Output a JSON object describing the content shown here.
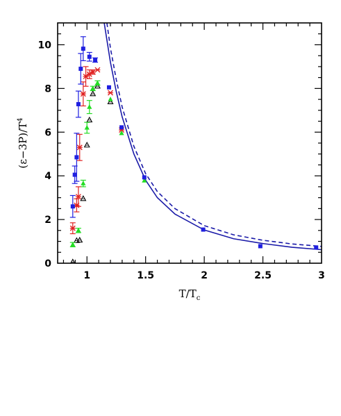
{
  "chart_data": {
    "type": "scatter",
    "title": "",
    "xlabel": "T/T",
    "xlabel_sub": "c",
    "ylabel": "(ε−3P)/T",
    "ylabel_sup": "4",
    "xlim": [
      0.75,
      3.0
    ],
    "ylim": [
      0,
      11
    ],
    "x_ticks": [
      {
        "value": 1,
        "label": "1"
      },
      {
        "value": 1.5,
        "label": "1.5"
      },
      {
        "value": 2,
        "label": "2"
      },
      {
        "value": 2.5,
        "label": "2.5"
      },
      {
        "value": 3,
        "label": "3"
      }
    ],
    "y_ticks": [
      {
        "value": 0,
        "label": "0"
      },
      {
        "value": 2,
        "label": "2"
      },
      {
        "value": 4,
        "label": "4"
      },
      {
        "value": 6,
        "label": "6"
      },
      {
        "value": 8,
        "label": "8"
      },
      {
        "value": 10,
        "label": "10"
      }
    ],
    "grid": false,
    "legend": "none",
    "series": [
      {
        "marker": "square",
        "color": "#1f1fe0",
        "points": [
          {
            "x": 0.879,
            "y": 2.6,
            "err": 0.5
          },
          {
            "x": 0.896,
            "y": 4.05,
            "err": 0.4
          },
          {
            "x": 0.912,
            "y": 4.85,
            "err": 1.1
          },
          {
            "x": 0.927,
            "y": 7.28,
            "err": 0.6
          },
          {
            "x": 0.947,
            "y": 8.9,
            "err": 0.7
          },
          {
            "x": 0.968,
            "y": 9.82,
            "err": 0.55
          },
          {
            "x": 1.021,
            "y": 9.45,
            "err": 0.2
          },
          {
            "x": 1.07,
            "y": 9.3,
            "err": 0.1
          },
          {
            "x": 1.188,
            "y": 8.05,
            "err": 0.05
          },
          {
            "x": 1.295,
            "y": 6.22,
            "err": 0.05
          },
          {
            "x": 1.489,
            "y": 3.93,
            "err": 0.05
          },
          {
            "x": 1.991,
            "y": 1.54,
            "err": 0.05
          },
          {
            "x": 2.478,
            "y": 0.78,
            "err": 0.03
          },
          {
            "x": 2.954,
            "y": 0.72,
            "err": 0.03
          }
        ]
      },
      {
        "marker": "star",
        "color": "#e02020",
        "points": [
          {
            "x": 0.879,
            "y": 1.6,
            "err": 0.25
          },
          {
            "x": 0.912,
            "y": 2.65,
            "err": 0.3
          },
          {
            "x": 0.927,
            "y": 3.05,
            "err": 0.45
          },
          {
            "x": 0.938,
            "y": 5.3,
            "err": 0.6
          },
          {
            "x": 0.968,
            "y": 7.75,
            "err": 0.55
          },
          {
            "x": 0.99,
            "y": 8.55,
            "err": 0.45
          },
          {
            "x": 1.021,
            "y": 8.65,
            "err": 0.2
          },
          {
            "x": 1.05,
            "y": 8.75,
            "err": 0.1
          },
          {
            "x": 1.09,
            "y": 8.85,
            "err": 0.05
          },
          {
            "x": 1.2,
            "y": 7.8,
            "err": 0.05
          },
          {
            "x": 1.295,
            "y": 6.1,
            "err": 0.05
          }
        ]
      },
      {
        "marker": "triangle",
        "color": "#22dd22",
        "points": [
          {
            "x": 0.879,
            "y": 0.85,
            "err": 0.1
          },
          {
            "x": 0.927,
            "y": 1.5,
            "err": 0.1
          },
          {
            "x": 0.968,
            "y": 3.65,
            "err": 0.15
          },
          {
            "x": 1.0,
            "y": 6.2,
            "err": 0.25
          },
          {
            "x": 1.021,
            "y": 7.15,
            "err": 0.3
          },
          {
            "x": 1.05,
            "y": 8.0,
            "err": 0.1
          },
          {
            "x": 1.09,
            "y": 8.25,
            "err": 0.1
          },
          {
            "x": 1.2,
            "y": 7.5,
            "err": 0.05
          },
          {
            "x": 1.295,
            "y": 5.95,
            "err": 0.05
          },
          {
            "x": 1.489,
            "y": 3.78,
            "err": 0.05
          }
        ]
      },
      {
        "marker": "open-triangle",
        "color": "#000000",
        "points": [
          {
            "x": 0.879,
            "y": 0.05,
            "err": 0.05
          },
          {
            "x": 0.912,
            "y": 1.03,
            "err": 0.05
          },
          {
            "x": 0.938,
            "y": 1.05,
            "err": 0.05
          },
          {
            "x": 0.968,
            "y": 2.95,
            "err": 0.05
          },
          {
            "x": 1.0,
            "y": 5.4,
            "err": 0.05
          },
          {
            "x": 1.021,
            "y": 6.55,
            "err": 0.05
          },
          {
            "x": 1.05,
            "y": 7.75,
            "err": 0.05
          },
          {
            "x": 1.09,
            "y": 8.1,
            "err": 0.05
          },
          {
            "x": 1.2,
            "y": 7.38,
            "err": 0.05
          }
        ]
      }
    ],
    "curves": [
      {
        "style": "solid",
        "color": "#1a1aa8",
        "points": [
          [
            1.147,
            11.0
          ],
          [
            1.2,
            9.2
          ],
          [
            1.25,
            7.85
          ],
          [
            1.3,
            6.7
          ],
          [
            1.4,
            5.0
          ],
          [
            1.5,
            3.8
          ],
          [
            1.6,
            3.0
          ],
          [
            1.75,
            2.25
          ],
          [
            2.0,
            1.52
          ],
          [
            2.25,
            1.12
          ],
          [
            2.5,
            0.9
          ],
          [
            2.75,
            0.73
          ],
          [
            3.0,
            0.62
          ]
        ]
      },
      {
        "style": "dashed",
        "color": "#1a1aa8",
        "points": [
          [
            1.17,
            11.0
          ],
          [
            1.2,
            9.85
          ],
          [
            1.25,
            8.4
          ],
          [
            1.3,
            7.15
          ],
          [
            1.4,
            5.35
          ],
          [
            1.5,
            4.1
          ],
          [
            1.6,
            3.28
          ],
          [
            1.75,
            2.5
          ],
          [
            2.0,
            1.72
          ],
          [
            2.25,
            1.3
          ],
          [
            2.5,
            1.05
          ],
          [
            2.75,
            0.88
          ],
          [
            3.0,
            0.77
          ]
        ]
      }
    ]
  }
}
